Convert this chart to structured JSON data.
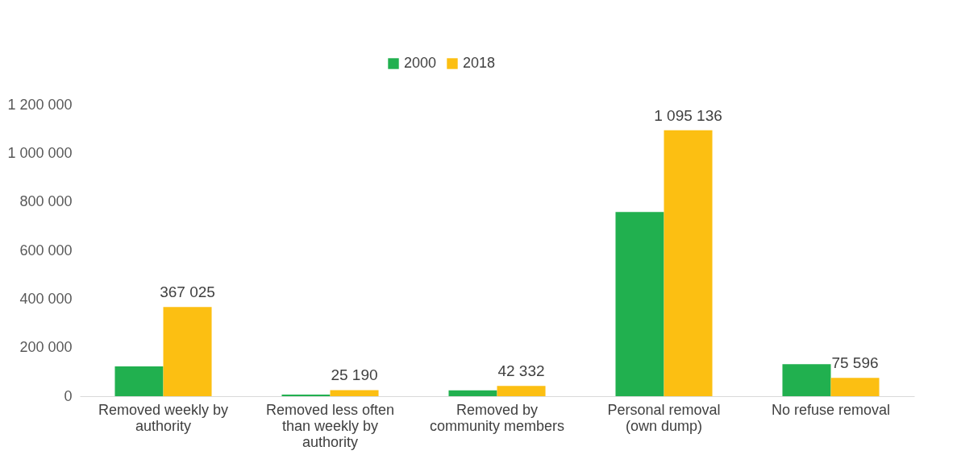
{
  "chart_data": {
    "type": "bar",
    "categories": [
      "Removed weekly by authority",
      "Removed less often than weekly by authority",
      "Removed by community members",
      "Personal removal (own dump)",
      "No refuse removal"
    ],
    "series": [
      {
        "name": "2000",
        "color": "#21b04f",
        "values": [
          123000,
          7000,
          24000,
          758000,
          132000
        ]
      },
      {
        "name": "2018",
        "color": "#fcbf12",
        "values": [
          367025,
          25190,
          42332,
          1095136,
          75596
        ],
        "value_labels": [
          "367 025",
          "25 190",
          "42 332",
          "1 095 136",
          "75 596"
        ]
      }
    ],
    "ylim": [
      0,
      1200000
    ],
    "yticks": [
      {
        "value": 0,
        "label": "0"
      },
      {
        "value": 200000,
        "label": "200 000"
      },
      {
        "value": 400000,
        "label": "400 000"
      },
      {
        "value": 600000,
        "label": "600 000"
      },
      {
        "value": 800000,
        "label": "800 000"
      },
      {
        "value": 1000000,
        "label": "1 000 000"
      },
      {
        "value": 1200000,
        "label": "1 200 000"
      }
    ],
    "grid": false,
    "legend": "top"
  }
}
